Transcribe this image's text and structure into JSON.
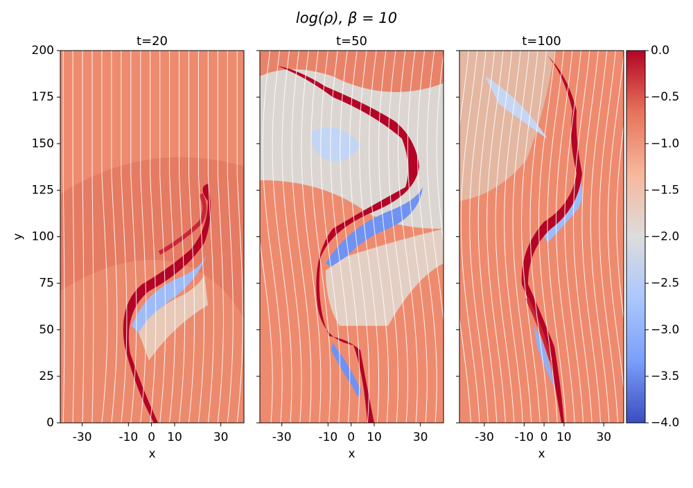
{
  "chart_data": {
    "type": "heatmap",
    "title": "log(ρ), β = 10",
    "ylabel": "y",
    "ylim": [
      0,
      200
    ],
    "yticks": [
      0,
      25,
      50,
      75,
      100,
      125,
      150,
      175,
      200
    ],
    "panels": [
      {
        "title": "t=20",
        "xlabel": "x",
        "xlim": [
          -39.5,
          40
        ],
        "xticks": [
          -30,
          -10,
          0,
          10,
          30
        ]
      },
      {
        "title": "t=50",
        "xlabel": "x",
        "xlim": [
          -39.5,
          40
        ],
        "xticks": [
          -30,
          -10,
          0,
          10,
          30
        ]
      },
      {
        "title": "t=100",
        "xlabel": "x",
        "xlim": [
          -42.5,
          40
        ],
        "xticks": [
          -30,
          -10,
          0,
          10,
          30
        ]
      }
    ],
    "colormap": "coolwarm",
    "colorbar": {
      "lim": [
        -4,
        0
      ],
      "ticks": [
        {
          "value": 0,
          "label": "0.0"
        },
        {
          "value": -0.5,
          "label": "−0.5"
        },
        {
          "value": -1,
          "label": "−1.0"
        },
        {
          "value": -1.5,
          "label": "−1.5"
        },
        {
          "value": -2,
          "label": "−2.0"
        },
        {
          "value": -2.5,
          "label": "−2.5"
        },
        {
          "value": -3,
          "label": "−3.0"
        },
        {
          "value": -3.5,
          "label": "−3.5"
        },
        {
          "value": -4,
          "label": "−4.0"
        }
      ]
    }
  }
}
